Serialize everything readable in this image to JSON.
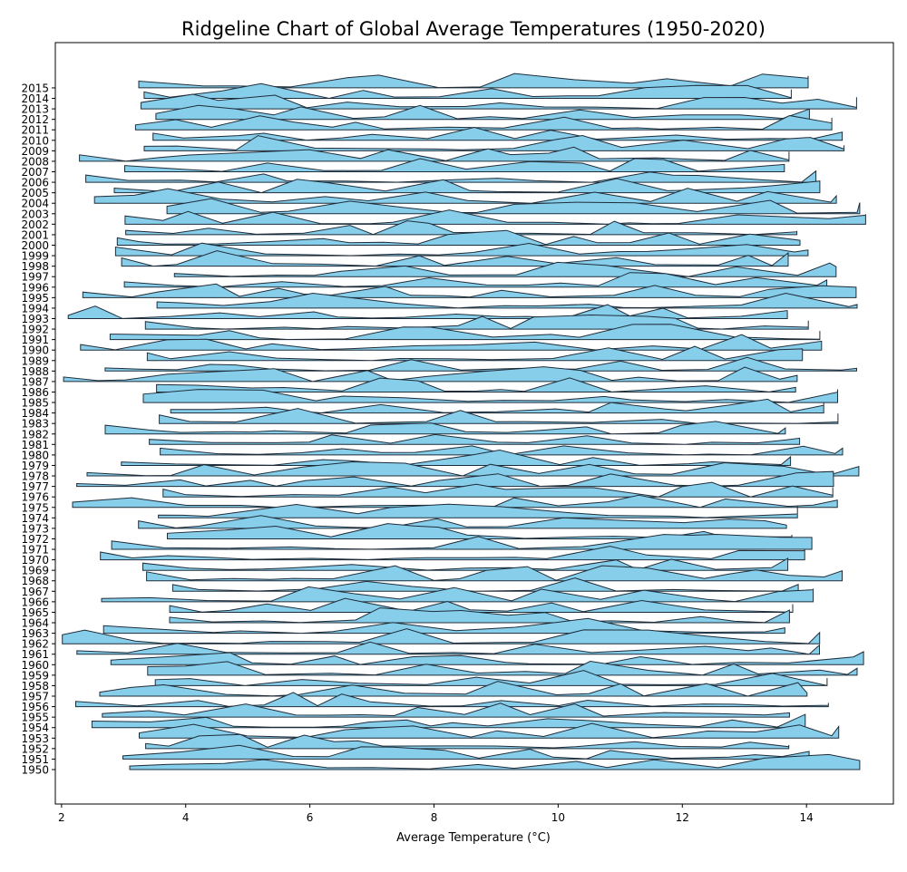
{
  "chart_data": {
    "type": "ridgeline",
    "title": "Ridgeline Chart of Global Average Temperatures (1950-2020)",
    "xlabel": "Average Temperature (°C)",
    "ylabel": "",
    "xlim": [
      1.9,
      15.4
    ],
    "x_ticks": [
      2,
      4,
      6,
      8,
      10,
      12,
      14
    ],
    "years": [
      1950,
      1951,
      1952,
      1953,
      1954,
      1955,
      1956,
      1957,
      1958,
      1959,
      1960,
      1961,
      1962,
      1963,
      1964,
      1965,
      1966,
      1967,
      1968,
      1969,
      1970,
      1971,
      1972,
      1973,
      1974,
      1975,
      1976,
      1977,
      1978,
      1979,
      1980,
      1981,
      1982,
      1983,
      1984,
      1985,
      1986,
      1987,
      1988,
      1989,
      1990,
      1991,
      1992,
      1993,
      1994,
      1995,
      1996,
      1997,
      1998,
      1999,
      2000,
      2001,
      2002,
      2003,
      2004,
      2005,
      2006,
      2007,
      2008,
      2009,
      2010,
      2011,
      2012,
      2013,
      2014,
      2015
    ],
    "fill_color": "#87CEEB",
    "edge_color": "#1f2d3a",
    "grid": false,
    "legend": "none"
  }
}
